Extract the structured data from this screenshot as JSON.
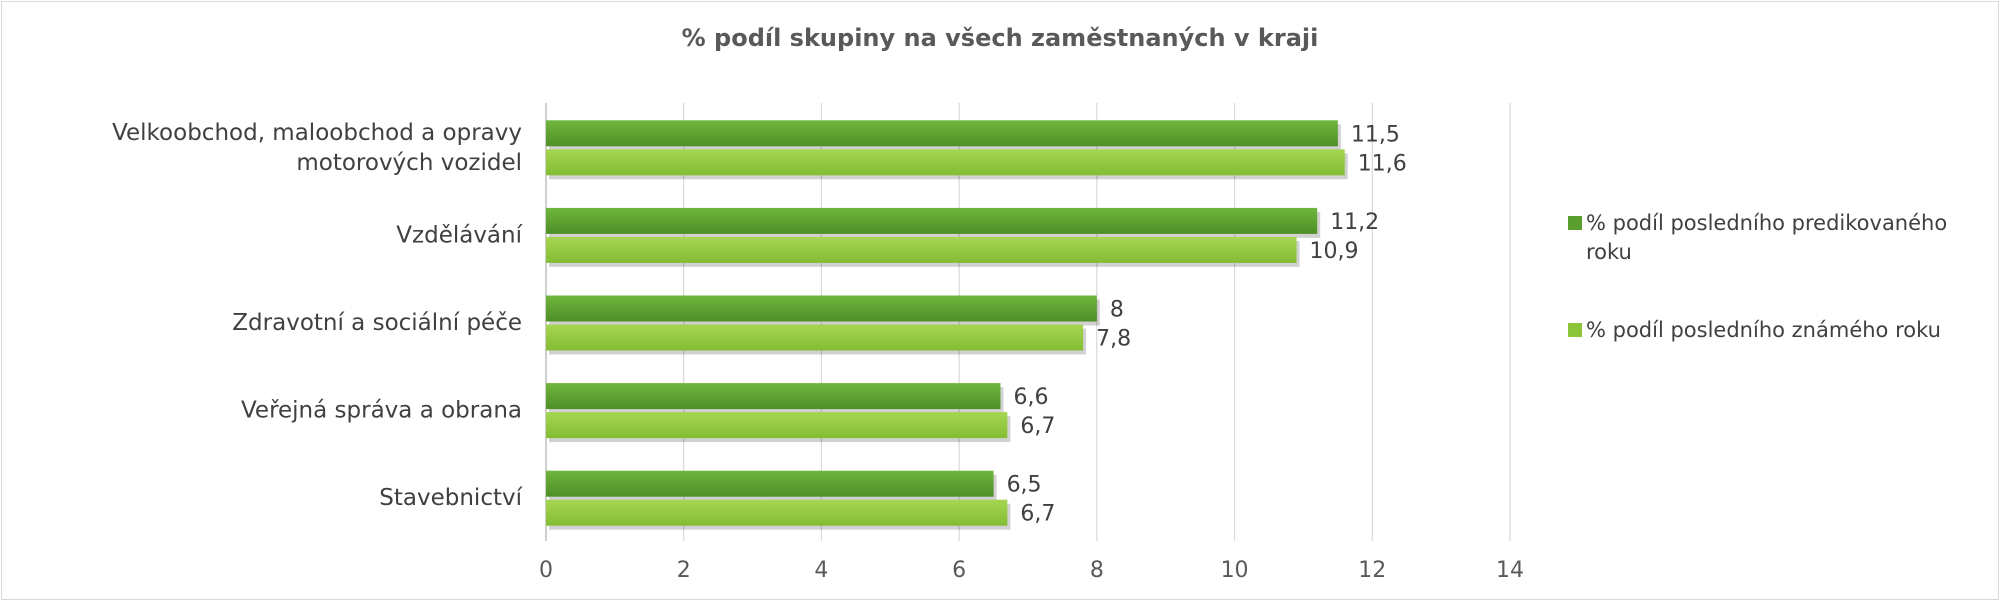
{
  "chart_data": {
    "type": "bar",
    "orientation": "horizontal",
    "title": "% podíl skupiny na všech zaměstnaných v kraji",
    "categories": [
      [
        "Velkoobchod, maloobchod a opravy",
        "motorových vozidel"
      ],
      [
        "Vzdělávání"
      ],
      [
        "Zdravotní a sociální péče"
      ],
      [
        "Veřejná správa a obrana"
      ],
      [
        "Stavebnictví"
      ]
    ],
    "series": [
      {
        "name": "% podíl posledního predikovaného roku",
        "legend_lines": [
          "% podíl posledního predikovaného",
          "roku"
        ],
        "values": [
          11.5,
          11.2,
          8,
          6.6,
          6.5
        ],
        "labels": [
          "11,5",
          "11,2",
          "8",
          "6,6",
          "6,5"
        ],
        "color": "#5a9e2f",
        "color_light": "#6cb83a"
      },
      {
        "name": "% podíl posledního známého roku",
        "legend_lines": [
          "% podíl posledního známého roku"
        ],
        "values": [
          11.6,
          10.9,
          7.8,
          6.7,
          6.7
        ],
        "labels": [
          "11,6",
          "10,9",
          "7,8",
          "6,7",
          "6,7"
        ],
        "color": "#8cc43a",
        "color_light": "#a3d84f"
      }
    ],
    "xlim": [
      0,
      14
    ],
    "xticks": [
      "0",
      "2",
      "4",
      "6",
      "8",
      "10",
      "12",
      "14"
    ],
    "grid": true,
    "legend_position": "right"
  }
}
